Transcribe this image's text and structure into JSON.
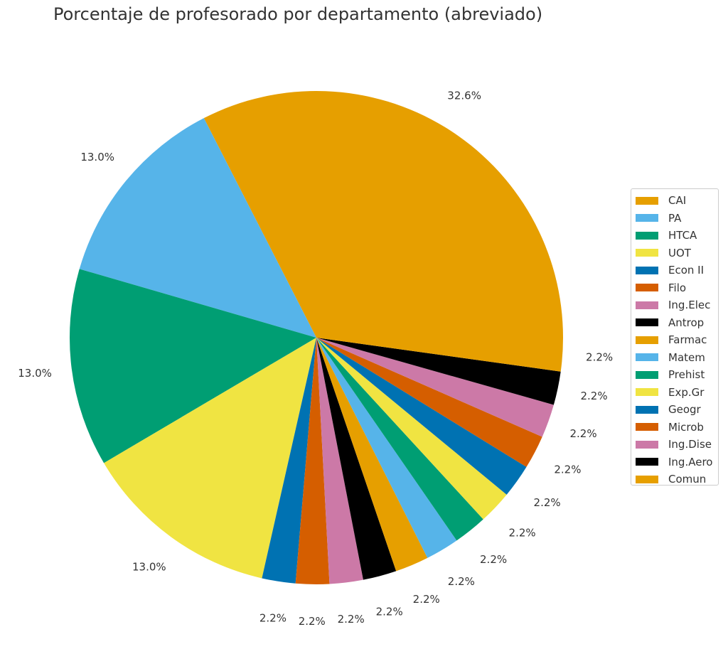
{
  "chart_data": {
    "type": "pie",
    "title": "Porcentaje de profesorado por departamento (abreviado)",
    "categories": [
      "CAI",
      "PA",
      "HTCA",
      "UOT",
      "Econ II",
      "Filo",
      "Ing.Elec",
      "Antrop",
      "Farmac",
      "Matem",
      "Prehist",
      "Exp.Gr",
      "Geogr",
      "Microb",
      "Ing.Dise",
      "Ing.Aero",
      "Comun"
    ],
    "values": [
      32.6,
      13.0,
      13.0,
      13.0,
      2.2,
      2.2,
      2.2,
      2.2,
      2.2,
      2.2,
      2.2,
      2.2,
      2.2,
      2.2,
      2.2,
      2.2,
      2.2
    ],
    "labels": [
      "32.6%",
      "13.0%",
      "13.0%",
      "13.0%",
      "2.2%",
      "2.2%",
      "2.2%",
      "2.2%",
      "2.2%",
      "2.2%",
      "2.2%",
      "2.2%",
      "2.2%",
      "2.2%",
      "2.2%",
      "2.2%",
      "2.2%"
    ],
    "colors": [
      "#E69F00",
      "#56B4E9",
      "#009E73",
      "#F0E442",
      "#0072B2",
      "#D55E00",
      "#CC79A7",
      "#000000",
      "#E69F00",
      "#56B4E9",
      "#009E73",
      "#F0E442",
      "#0072B2",
      "#D55E00",
      "#CC79A7",
      "#000000",
      "#E69F00"
    ],
    "start_angle": 0,
    "direction": "counterclockwise",
    "legend_position": "right"
  }
}
